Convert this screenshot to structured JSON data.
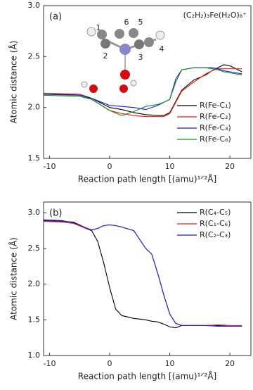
{
  "chart_data": [
    {
      "type": "line",
      "panel_label": "(a)",
      "annotation": "(C₂H₂)₃Fe(H₂O)₈⁺",
      "atom_labels": [
        "1",
        "2",
        "3",
        "4",
        "5",
        "6"
      ],
      "x_label": "Reaction path length [(amu)¹ᐟ²Å]",
      "y_label": "Atomic distance (Å)",
      "xlim": [
        -11,
        23.5
      ],
      "xticks": [
        -10,
        0,
        10,
        20
      ],
      "ylim": [
        1.5,
        3.0
      ],
      "yticks": [
        {
          "value": 1.5,
          "label": "1.5"
        },
        {
          "value": 2,
          "label": "2.0"
        },
        {
          "value": 2.5,
          "label": "2.5"
        },
        {
          "value": 3,
          "label": "3.0"
        }
      ],
      "x": [
        -11,
        -5,
        -3,
        0,
        2,
        4,
        6,
        8,
        9,
        10,
        11,
        12,
        14,
        16,
        17,
        18,
        19,
        20,
        22
      ],
      "series": [
        {
          "name": "R(Fe-C₁)",
          "color": "#000000",
          "values": [
            2.13,
            2.13,
            2.09,
            2.0,
            1.98,
            1.95,
            1.93,
            1.92,
            1.92,
            1.95,
            2.06,
            2.17,
            2.27,
            2.32,
            2.36,
            2.39,
            2.42,
            2.41,
            2.35
          ]
        },
        {
          "name": "R(Fe-C₂)",
          "color": "#e8201a",
          "values": [
            2.14,
            2.13,
            2.08,
            1.97,
            1.94,
            1.92,
            1.91,
            1.91,
            1.91,
            1.94,
            2.05,
            2.16,
            2.25,
            2.33,
            2.36,
            2.38,
            2.38,
            2.38,
            2.38
          ]
        },
        {
          "name": "R(Fe-C₃)",
          "color": "#1a1ad8",
          "values": [
            2.13,
            2.12,
            2.09,
            2.02,
            2.01,
            2.0,
            1.98,
            2.02,
            2.05,
            2.08,
            2.28,
            2.37,
            2.39,
            2.39,
            2.39,
            2.38,
            2.36,
            2.35,
            2.33
          ]
        },
        {
          "name": "R(Fe-C₆)",
          "color": "#1a8a1a",
          "values": [
            2.12,
            2.11,
            2.08,
            1.97,
            1.92,
            1.96,
            2.01,
            2.03,
            2.05,
            2.08,
            2.25,
            2.37,
            2.39,
            2.39,
            2.38,
            2.37,
            2.35,
            2.34,
            2.32
          ]
        }
      ]
    },
    {
      "type": "line",
      "panel_label": "(b)",
      "x_label": "Reaction path length [(amu)¹ᐟ²Å]",
      "y_label": "Atomic distance (Å)",
      "xlim": [
        -11,
        23.5
      ],
      "xticks": [
        -10,
        0,
        10,
        20
      ],
      "ylim": [
        1.0,
        3.15
      ],
      "yticks": [
        {
          "value": 1,
          "label": "1.0"
        },
        {
          "value": 1.5,
          "label": "1.5"
        },
        {
          "value": 2,
          "label": "2.0"
        },
        {
          "value": 2.5,
          "label": "2.5"
        },
        {
          "value": 3,
          "label": "3.0"
        }
      ],
      "x": [
        -11,
        -8,
        -6,
        -4,
        -3,
        -2,
        -1,
        0,
        1,
        2,
        4,
        6,
        7,
        8,
        9,
        10,
        11,
        12,
        14,
        16,
        18,
        20,
        22
      ],
      "series": [
        {
          "name": "R(C₄-C₅)",
          "color": "#000000",
          "values": [
            2.9,
            2.89,
            2.86,
            2.78,
            2.75,
            2.6,
            2.3,
            1.95,
            1.65,
            1.56,
            1.52,
            1.5,
            1.48,
            1.47,
            1.44,
            1.4,
            1.39,
            1.42,
            1.42,
            1.42,
            1.42,
            1.41,
            1.41
          ]
        },
        {
          "name": "R(C₁-C₆)",
          "color": "#e8201a",
          "values": [
            2.88,
            2.87,
            2.85,
            2.78,
            2.76,
            2.78,
            2.82,
            2.83,
            2.82,
            2.8,
            2.75,
            2.5,
            2.42,
            2.15,
            1.85,
            1.58,
            1.45,
            1.42,
            1.42,
            1.42,
            1.43,
            1.42,
            1.42
          ]
        },
        {
          "name": "R(C₂-C₃)",
          "color": "#1a1ad8",
          "values": [
            2.89,
            2.88,
            2.87,
            2.79,
            2.76,
            2.78,
            2.82,
            2.83,
            2.82,
            2.8,
            2.75,
            2.5,
            2.42,
            2.15,
            1.85,
            1.58,
            1.45,
            1.42,
            1.42,
            1.42,
            1.41,
            1.41,
            1.41
          ]
        }
      ]
    }
  ]
}
